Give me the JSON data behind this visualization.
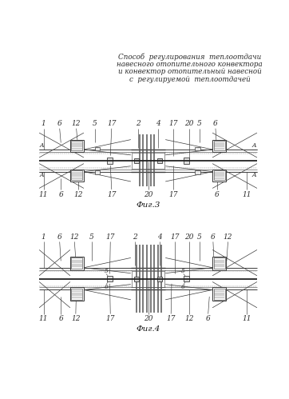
{
  "title_lines": [
    "Способ  регулирования  теплоотдачи",
    "навесного отопительного конвектора",
    "и конвектор отопительный навесной",
    "с  регулируемой  теплоотдачей"
  ],
  "fig3_label": "Фиг.3",
  "fig4_label": "Фиг.4",
  "bg_color": "#ffffff",
  "line_color": "#3a3a3a",
  "label_color": "#2a2a2a"
}
